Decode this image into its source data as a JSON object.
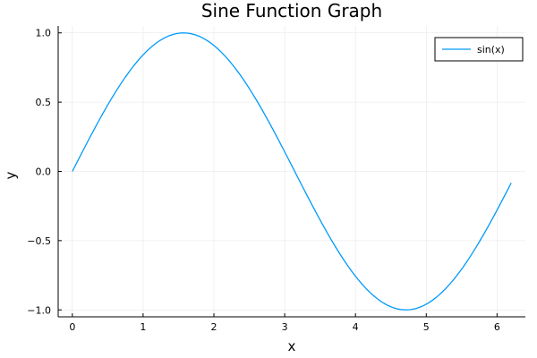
{
  "chart_data": {
    "type": "line",
    "title": "Sine Function Graph",
    "xlabel": "x",
    "ylabel": "y",
    "xlim": [
      -0.2,
      6.4
    ],
    "ylim": [
      -1.05,
      1.05
    ],
    "xticks": [
      0,
      1,
      2,
      3,
      4,
      5,
      6
    ],
    "xtick_labels": [
      "0",
      "1",
      "2",
      "3",
      "4",
      "5",
      "6"
    ],
    "yticks": [
      -1.0,
      -0.5,
      0.0,
      0.5,
      1.0
    ],
    "ytick_labels": [
      "−1.0",
      "−0.5",
      "0.0",
      "0.5",
      "1.0"
    ],
    "grid": true,
    "legend": {
      "position": "top-right",
      "entries": [
        "sin(x)"
      ]
    },
    "series": [
      {
        "name": "sin(x)",
        "color": "#009AFA",
        "function": "sin(x)",
        "x_start": 0.0,
        "x_end": 6.2,
        "samples": 100
      }
    ]
  },
  "colors": {
    "line": "#009AFA",
    "grid": "#e6e6e6",
    "axis": "#000000"
  }
}
